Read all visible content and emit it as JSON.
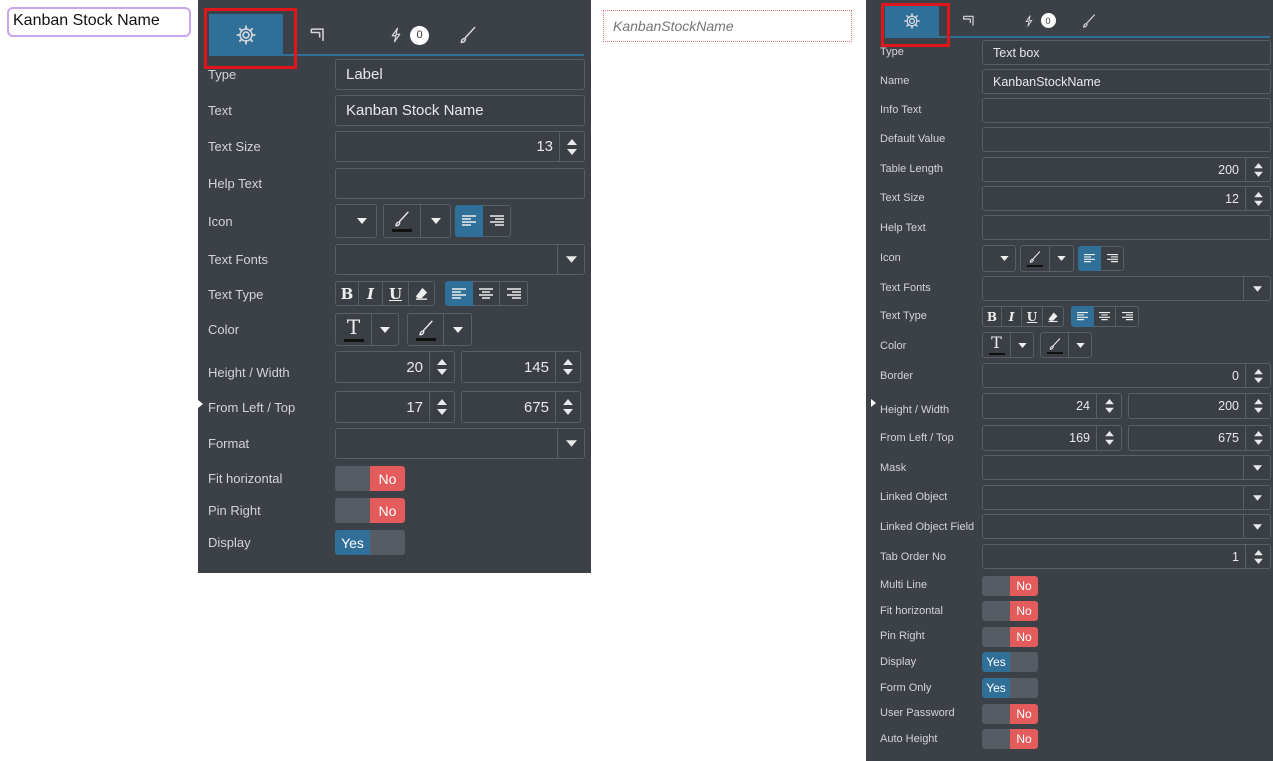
{
  "label_preview": {
    "text": "Kanban Stock Name"
  },
  "textbox_preview": {
    "placeholder": "KanbanStockName"
  },
  "left_panel": {
    "tabs": {
      "events_badge": "0"
    },
    "type_label": "Type",
    "type_value": "Label",
    "text_label": "Text",
    "text_value": "Kanban Stock Name",
    "text_size_label": "Text Size",
    "text_size_value": "13",
    "help_text_label": "Help Text",
    "help_text_value": "",
    "icon_label": "Icon",
    "text_fonts_label": "Text Fonts",
    "text_type_label": "Text Type",
    "color_label": "Color",
    "height_width_label": "Height / Width",
    "height_value": "20",
    "width_value": "145",
    "from_left_top_label": "From Left / Top",
    "left_value": "17",
    "top_value": "675",
    "format_label": "Format",
    "fit_horizontal_label": "Fit horizontal",
    "fit_horizontal_value": "No",
    "pin_right_label": "Pin Right",
    "pin_right_value": "No",
    "display_label": "Display",
    "display_value": "Yes"
  },
  "right_panel": {
    "tabs": {
      "events_badge": "0"
    },
    "type_label": "Type",
    "type_value": "Text box",
    "name_label": "Name",
    "name_value": "KanbanStockName",
    "info_text_label": "Info Text",
    "default_value_label": "Default Value",
    "table_length_label": "Table Length",
    "table_length_value": "200",
    "text_size_label": "Text Size",
    "text_size_value": "12",
    "help_text_label": "Help Text",
    "icon_label": "Icon",
    "text_fonts_label": "Text Fonts",
    "text_type_label": "Text Type",
    "color_label": "Color",
    "border_label": "Border",
    "border_value": "0",
    "height_width_label": "Height / Width",
    "height_value": "24",
    "width_value": "200",
    "from_left_top_label": "From Left / Top",
    "left_value": "169",
    "top_value": "675",
    "mask_label": "Mask",
    "linked_object_label": "Linked Object",
    "linked_object_field_label": "Linked Object Field",
    "tab_order_label": "Tab Order No",
    "tab_order_value": "1",
    "multi_line_label": "Multi Line",
    "multi_line_value": "No",
    "fit_horizontal_label": "Fit horizontal",
    "fit_horizontal_value": "No",
    "pin_right_label": "Pin Right",
    "pin_right_value": "No",
    "display_label": "Display",
    "display_value": "Yes",
    "form_only_label": "Form Only",
    "form_only_value": "Yes",
    "user_password_label": "User Password",
    "user_password_value": "No",
    "auto_height_label": "Auto Height",
    "auto_height_value": "No"
  },
  "colors": {
    "panel_bg": "#3c4047",
    "accent": "#2f6f98",
    "toggle_no": "#e45b5b",
    "highlight": "#e0161b",
    "preview_border": "#c9a6ef"
  }
}
